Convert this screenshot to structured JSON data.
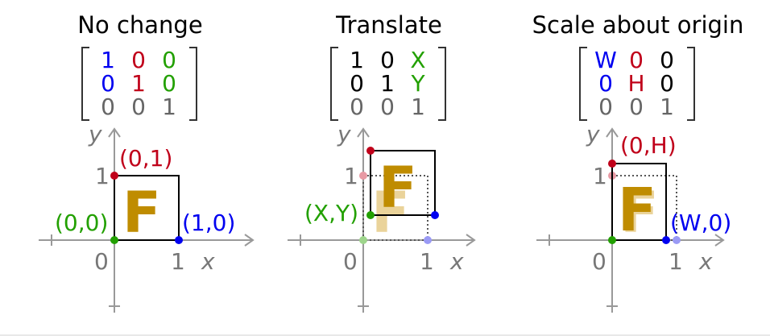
{
  "colors": {
    "red": "#c0001a",
    "blue": "#0000f0",
    "green": "#22a000",
    "gray": "#666666",
    "gold": "#bf8c00",
    "gold_light": "#ead39a"
  },
  "panels": [
    {
      "title": "No change",
      "matrix": [
        [
          "1",
          "0",
          "0"
        ],
        [
          "0",
          "1",
          "0"
        ],
        [
          "0",
          "0",
          "1"
        ]
      ],
      "matrix_colors": [
        [
          "blue",
          "red",
          "green"
        ],
        [
          "blue",
          "red",
          "green"
        ],
        [
          "gray",
          "gray",
          "gray"
        ]
      ],
      "labels": {
        "origin": "(0,0)",
        "top": "(0,1)",
        "right": "(1,0)"
      }
    },
    {
      "title": "Translate",
      "matrix": [
        [
          "1",
          "0",
          "X"
        ],
        [
          "0",
          "1",
          "Y"
        ],
        [
          "0",
          "0",
          "1"
        ]
      ],
      "matrix_colors": [
        [
          "black",
          "black",
          "green"
        ],
        [
          "black",
          "black",
          "green"
        ],
        [
          "gray",
          "gray",
          "gray"
        ]
      ],
      "labels": {
        "origin": "(X,Y)"
      }
    },
    {
      "title": "Scale about origin",
      "matrix": [
        [
          "W",
          "0",
          "0"
        ],
        [
          "0",
          "H",
          "0"
        ],
        [
          "0",
          "0",
          "1"
        ]
      ],
      "matrix_colors": [
        [
          "blue",
          "red",
          "black"
        ],
        [
          "blue",
          "red",
          "black"
        ],
        [
          "gray",
          "gray",
          "gray"
        ]
      ],
      "labels": {
        "top": "(0,H)",
        "right": "(W,0)"
      }
    }
  ],
  "axes": {
    "x_label": "x",
    "y_label": "y",
    "tick_0": "0",
    "tick_1": "1",
    "glyph": "F"
  }
}
